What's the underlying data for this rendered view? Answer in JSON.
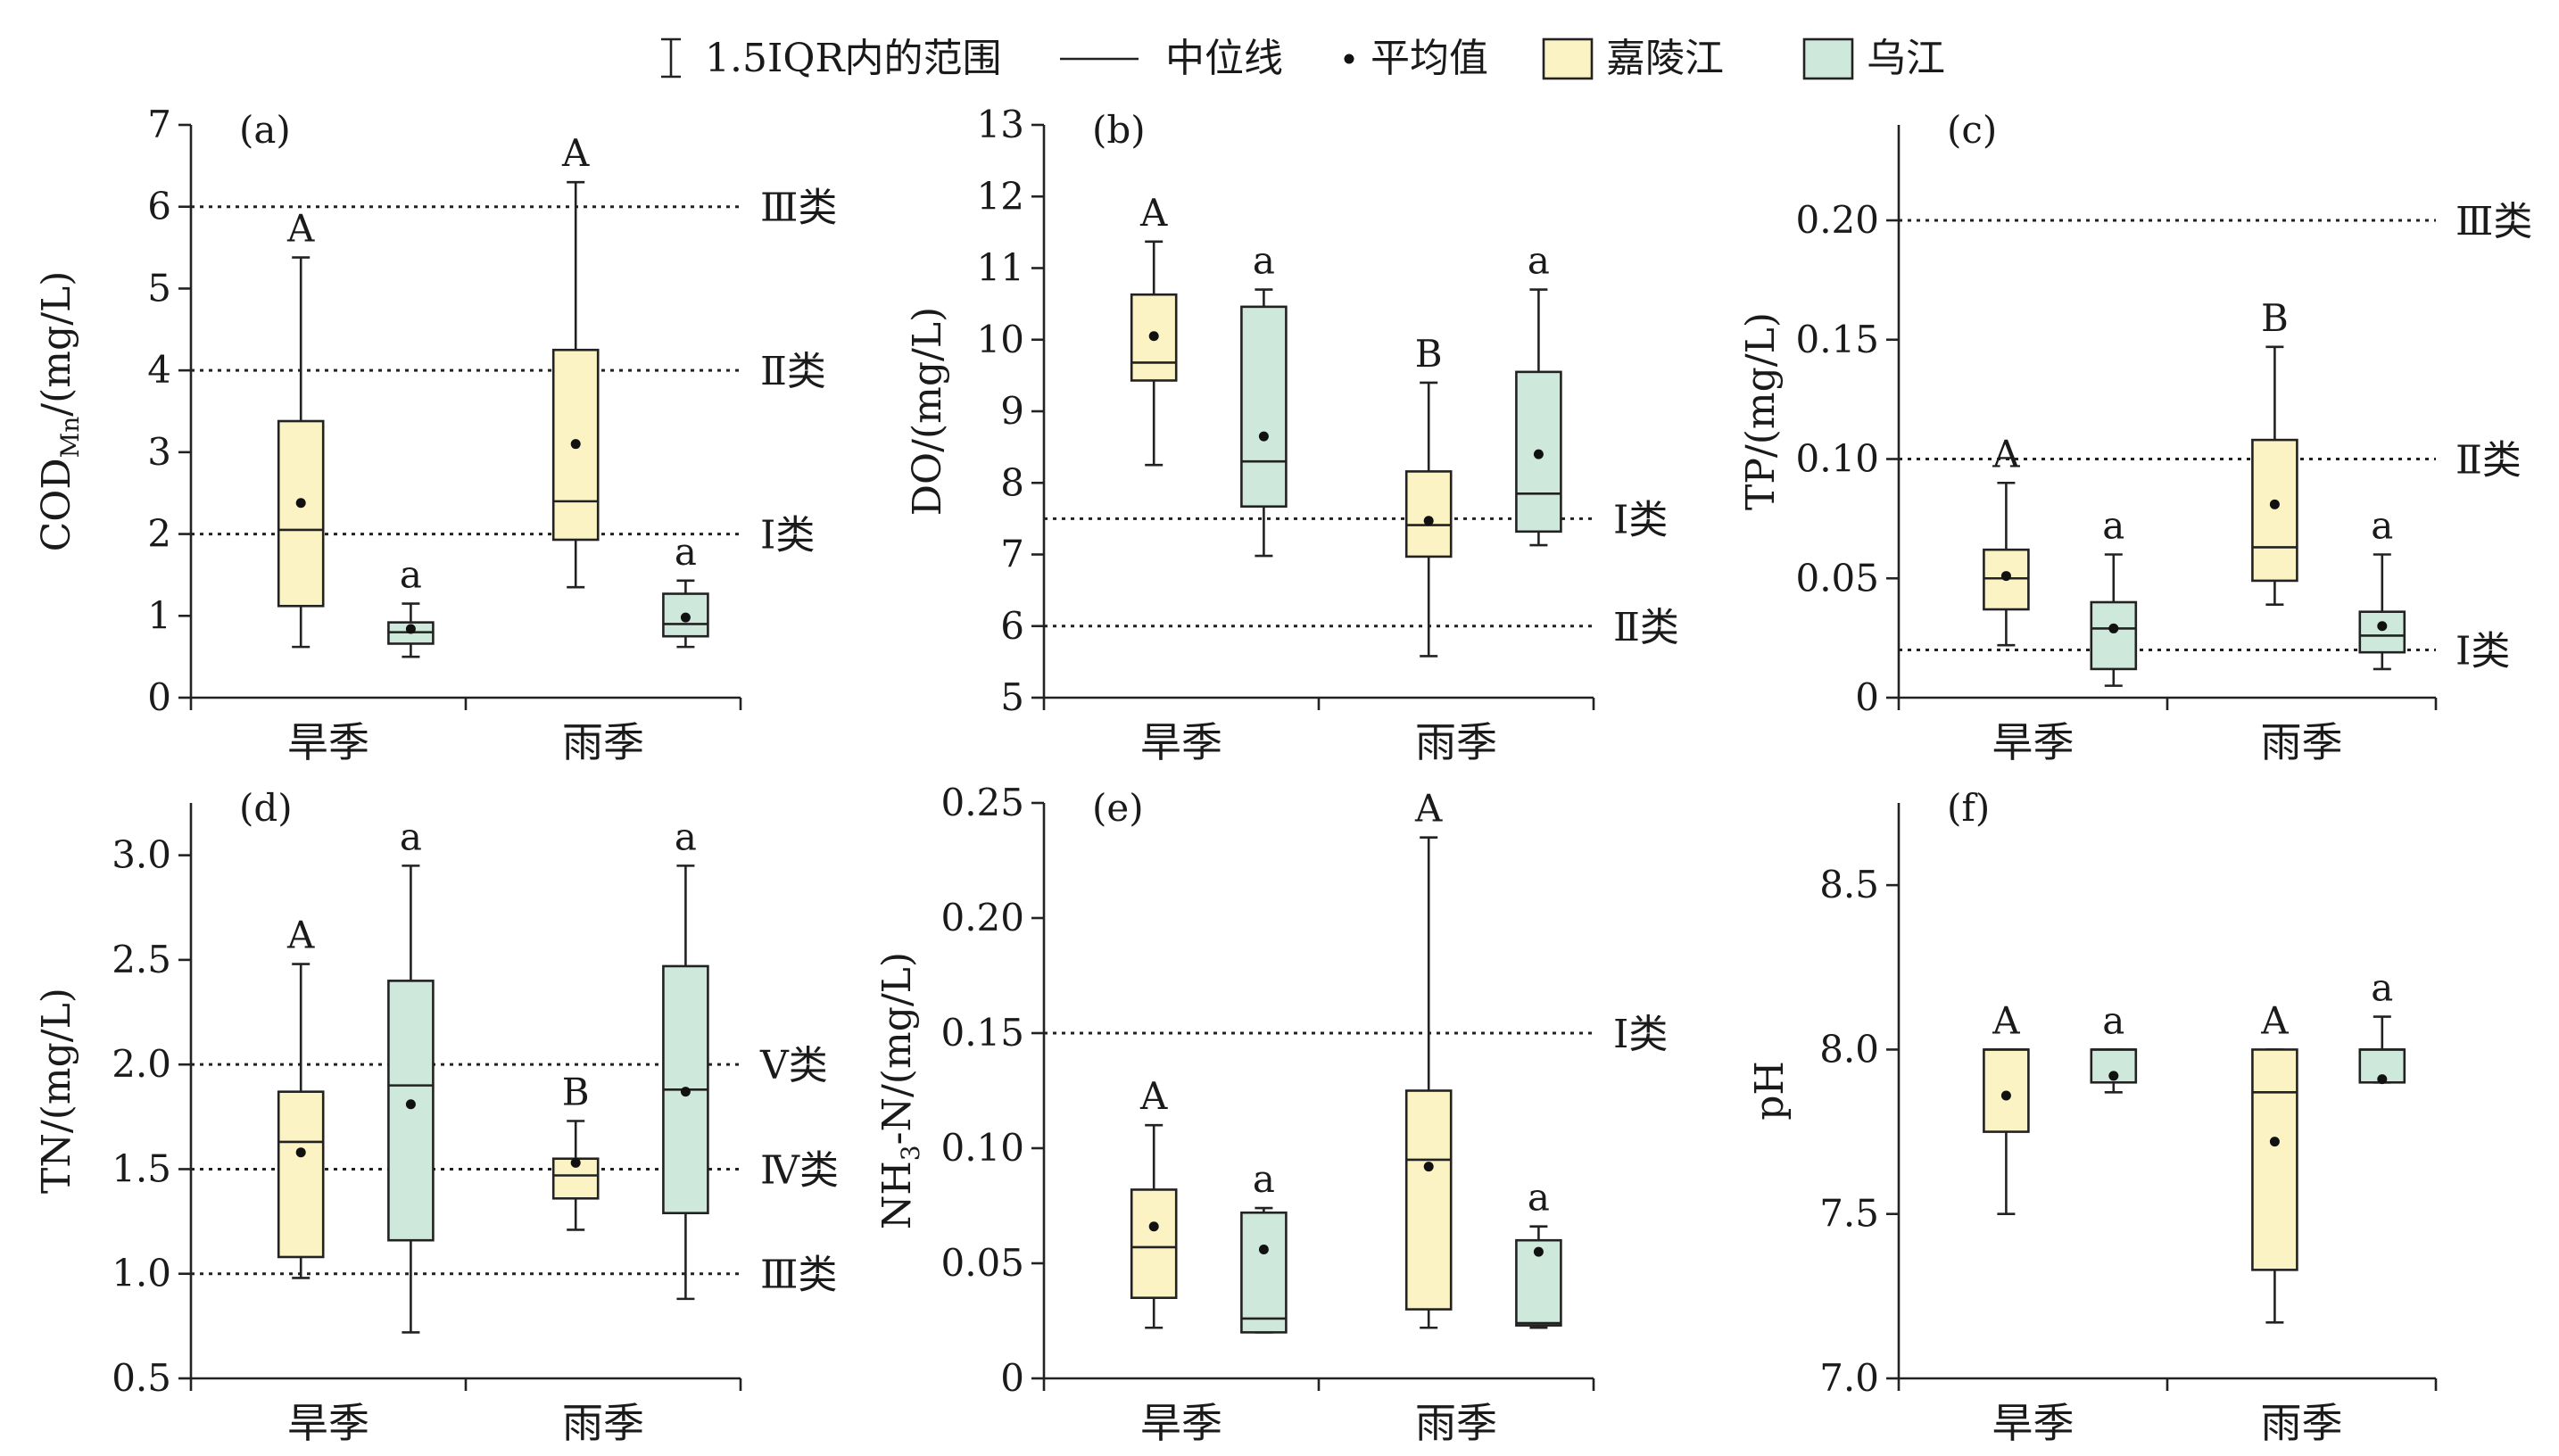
{
  "legend": {
    "range_label": "1.5IQR内的范围",
    "median_label": "中位线",
    "mean_label": "平均值",
    "colors": {
      "jialing": "#fbf3c4",
      "wujiang": "#cfe8dc"
    }
  },
  "chart_data": [
    {
      "type": "box",
      "panel_label": "(a)",
      "ylabel": "COD",
      "ylabel_sub": "Mn",
      "ylabel_suffix": "/(mg/L)",
      "ylim": [
        0,
        7
      ],
      "yticks": [
        "0",
        "1",
        "2",
        "3",
        "4",
        "5",
        "6",
        "7"
      ],
      "categories": [
        "旱季",
        "雨季"
      ],
      "series": [
        {
          "name": "嘉陵江",
          "color": "#fbf3c4",
          "stats": [
            {
              "min": 0.62,
              "q1": 1.12,
              "median": 2.05,
              "q3": 3.38,
              "max": 5.38,
              "mean": 2.38,
              "letter": "A"
            },
            {
              "min": 1.35,
              "q1": 1.93,
              "median": 2.4,
              "q3": 4.25,
              "max": 6.3,
              "mean": 3.1,
              "letter": "A"
            }
          ]
        },
        {
          "name": "乌江",
          "color": "#cfe8dc",
          "stats": [
            {
              "min": 0.5,
              "q1": 0.66,
              "median": 0.8,
              "q3": 0.92,
              "max": 1.15,
              "mean": 0.84,
              "letter": "a"
            },
            {
              "min": 0.62,
              "q1": 0.75,
              "median": 0.9,
              "q3": 1.27,
              "max": 1.43,
              "mean": 0.98,
              "letter": "a"
            }
          ]
        }
      ],
      "reference_lines": [
        {
          "value": 6,
          "label": "Ⅲ类"
        },
        {
          "value": 4,
          "label": "Ⅱ类"
        },
        {
          "value": 2,
          "label": "Ⅰ类"
        }
      ]
    },
    {
      "type": "box",
      "panel_label": "(b)",
      "ylabel": "DO/(mg/L)",
      "ylim": [
        5,
        13
      ],
      "yticks": [
        "5",
        "6",
        "7",
        "8",
        "9",
        "10",
        "11",
        "12",
        "13"
      ],
      "categories": [
        "旱季",
        "雨季"
      ],
      "series": [
        {
          "name": "嘉陵江",
          "color": "#fbf3c4",
          "stats": [
            {
              "min": 8.25,
              "q1": 9.43,
              "median": 9.68,
              "q3": 10.63,
              "max": 11.37,
              "mean": 10.05,
              "letter": "A"
            },
            {
              "min": 5.58,
              "q1": 6.97,
              "median": 7.41,
              "q3": 8.16,
              "max": 9.4,
              "mean": 7.47,
              "letter": "B"
            }
          ]
        },
        {
          "name": "乌江",
          "color": "#cfe8dc",
          "stats": [
            {
              "min": 6.98,
              "q1": 7.67,
              "median": 8.3,
              "q3": 10.46,
              "max": 10.7,
              "mean": 8.65,
              "letter": "a"
            },
            {
              "min": 7.13,
              "q1": 7.32,
              "median": 7.85,
              "q3": 9.55,
              "max": 10.7,
              "mean": 8.4,
              "letter": "a"
            }
          ]
        }
      ],
      "reference_lines": [
        {
          "value": 7.5,
          "label": "Ⅰ类"
        },
        {
          "value": 6,
          "label": "Ⅱ类"
        }
      ]
    },
    {
      "type": "box",
      "panel_label": "(c)",
      "ylabel": "TP/(mg/L)",
      "ylim": [
        0,
        0.24
      ],
      "yticks": [
        "0",
        "0.05",
        "0.10",
        "0.15",
        "0.20"
      ],
      "categories": [
        "旱季",
        "雨季"
      ],
      "series": [
        {
          "name": "嘉陵江",
          "color": "#fbf3c4",
          "stats": [
            {
              "min": 0.022,
              "q1": 0.037,
              "median": 0.05,
              "q3": 0.062,
              "max": 0.09,
              "mean": 0.051,
              "letter": "A"
            },
            {
              "min": 0.039,
              "q1": 0.049,
              "median": 0.063,
              "q3": 0.108,
              "max": 0.147,
              "mean": 0.081,
              "letter": "B"
            }
          ]
        },
        {
          "name": "乌江",
          "color": "#cfe8dc",
          "stats": [
            {
              "min": 0.005,
              "q1": 0.012,
              "median": 0.029,
              "q3": 0.04,
              "max": 0.06,
              "mean": 0.029,
              "letter": "a"
            },
            {
              "min": 0.012,
              "q1": 0.019,
              "median": 0.026,
              "q3": 0.036,
              "max": 0.06,
              "mean": 0.03,
              "letter": "a"
            }
          ]
        }
      ],
      "reference_lines": [
        {
          "value": 0.2,
          "label": "Ⅲ类"
        },
        {
          "value": 0.1,
          "label": "Ⅱ类"
        },
        {
          "value": 0.02,
          "label": "Ⅰ类"
        }
      ]
    },
    {
      "type": "box",
      "panel_label": "(d)",
      "ylabel": "TN/(mg/L)",
      "ylim": [
        0.5,
        3.25
      ],
      "yticks": [
        "0.5",
        "1.0",
        "1.5",
        "2.0",
        "2.5",
        "3.0"
      ],
      "categories": [
        "旱季",
        "雨季"
      ],
      "series": [
        {
          "name": "嘉陵江",
          "color": "#fbf3c4",
          "stats": [
            {
              "min": 0.98,
              "q1": 1.08,
              "median": 1.63,
              "q3": 1.87,
              "max": 2.48,
              "mean": 1.58,
              "letter": "A"
            },
            {
              "min": 1.21,
              "q1": 1.36,
              "median": 1.47,
              "q3": 1.55,
              "max": 1.73,
              "mean": 1.53,
              "letter": "B"
            }
          ]
        },
        {
          "name": "乌江",
          "color": "#cfe8dc",
          "stats": [
            {
              "min": 0.72,
              "q1": 1.16,
              "median": 1.9,
              "q3": 2.4,
              "max": 2.95,
              "mean": 1.81,
              "letter": "a"
            },
            {
              "min": 0.88,
              "q1": 1.29,
              "median": 1.88,
              "q3": 2.47,
              "max": 2.95,
              "mean": 1.87,
              "letter": "a"
            }
          ]
        }
      ],
      "reference_lines": [
        {
          "value": 2.0,
          "label": "Ⅴ类"
        },
        {
          "value": 1.5,
          "label": "Ⅳ类"
        },
        {
          "value": 1.0,
          "label": "Ⅲ类"
        }
      ]
    },
    {
      "type": "box",
      "panel_label": "(e)",
      "ylabel": "NH",
      "ylabel_sub": "3",
      "ylabel_suffix": "-N/(mg/L)",
      "ylim": [
        0,
        0.25
      ],
      "yticks": [
        "0",
        "0.05",
        "0.10",
        "0.15",
        "0.20",
        "0.25"
      ],
      "categories": [
        "旱季",
        "雨季"
      ],
      "series": [
        {
          "name": "嘉陵江",
          "color": "#fbf3c4",
          "stats": [
            {
              "min": 0.022,
              "q1": 0.035,
              "median": 0.057,
              "q3": 0.082,
              "max": 0.11,
              "mean": 0.066,
              "letter": "A"
            },
            {
              "min": 0.022,
              "q1": 0.03,
              "median": 0.095,
              "q3": 0.125,
              "max": 0.235,
              "mean": 0.092,
              "letter": "A"
            }
          ]
        },
        {
          "name": "乌江",
          "color": "#cfe8dc",
          "stats": [
            {
              "min": 0.02,
              "q1": 0.02,
              "median": 0.026,
              "q3": 0.072,
              "max": 0.074,
              "mean": 0.056,
              "letter": "a"
            },
            {
              "min": 0.022,
              "q1": 0.023,
              "median": 0.024,
              "q3": 0.06,
              "max": 0.066,
              "mean": 0.055,
              "letter": "a"
            }
          ]
        }
      ],
      "reference_lines": [
        {
          "value": 0.15,
          "label": "Ⅰ类"
        }
      ]
    },
    {
      "type": "box",
      "panel_label": "(f)",
      "ylabel": "pH",
      "ylim": [
        7.0,
        8.75
      ],
      "yticks": [
        "7.0",
        "7.5",
        "8.0",
        "8.5"
      ],
      "categories": [
        "旱季",
        "雨季"
      ],
      "series": [
        {
          "name": "嘉陵江",
          "color": "#fbf3c4",
          "stats": [
            {
              "min": 7.5,
              "q1": 7.75,
              "median": 8.0,
              "q3": 8.0,
              "max": 8.0,
              "mean": 7.86,
              "letter": "A"
            },
            {
              "min": 7.17,
              "q1": 7.33,
              "median": 7.87,
              "q3": 8.0,
              "max": 8.0,
              "mean": 7.72,
              "letter": "A"
            }
          ]
        },
        {
          "name": "乌江",
          "color": "#cfe8dc",
          "stats": [
            {
              "min": 7.87,
              "q1": 7.9,
              "median": 8.0,
              "q3": 8.0,
              "max": 8.0,
              "mean": 7.92,
              "letter": "a"
            },
            {
              "min": 7.9,
              "q1": 7.9,
              "median": 8.0,
              "q3": 8.0,
              "max": 8.1,
              "mean": 7.91,
              "letter": "a"
            }
          ]
        }
      ],
      "reference_lines": []
    }
  ]
}
